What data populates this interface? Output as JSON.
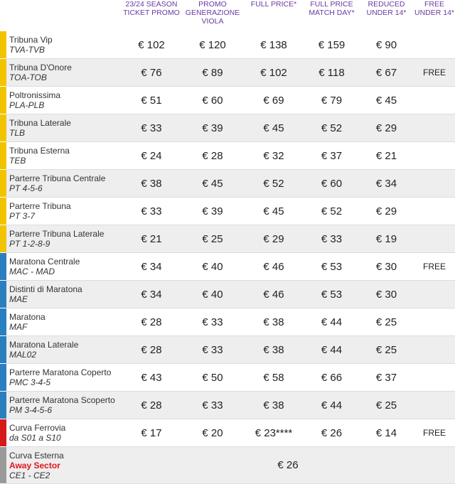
{
  "headers": [
    "",
    [
      "23/24 SEASON",
      "TICKET PROMO"
    ],
    [
      "PROMO",
      "GENERAZIONE",
      "VIOLA"
    ],
    [
      "FULL PRICE*"
    ],
    [
      "FULL PRICE",
      "MATCH DAY*"
    ],
    [
      "REDUCED",
      "UNDER 14*"
    ],
    [
      "FREE",
      "UNDER 14*"
    ]
  ],
  "colors": {
    "yellow": "#f2c400",
    "blue": "#2a7fbf",
    "red": "#d61a1a",
    "gray": "#9a9a9a",
    "header": "#6b3aa0",
    "away": "#e1141c"
  },
  "rows": [
    {
      "bar": "yellow",
      "name": "Tribuna Vip",
      "code": "TVA-TVB",
      "p": [
        "€ 102",
        "€ 120",
        "€ 138",
        "€ 159",
        "€ 90",
        ""
      ]
    },
    {
      "bar": "yellow",
      "name": "Tribuna D'Onore",
      "code": "TOA-TOB",
      "p": [
        "€ 76",
        "€ 89",
        "€ 102",
        "€ 118",
        "€ 67",
        "FREE"
      ]
    },
    {
      "bar": "yellow",
      "name": "Poltronissima",
      "code": "PLA-PLB",
      "p": [
        "€ 51",
        "€ 60",
        "€ 69",
        "€ 79",
        "€ 45",
        ""
      ]
    },
    {
      "bar": "yellow",
      "name": "Tribuna Laterale",
      "code": "TLB",
      "p": [
        "€ 33",
        "€ 39",
        "€ 45",
        "€ 52",
        "€ 29",
        ""
      ]
    },
    {
      "bar": "yellow",
      "name": "Tribuna Esterna",
      "code": "TEB",
      "p": [
        "€ 24",
        "€ 28",
        "€ 32",
        "€ 37",
        "€ 21",
        ""
      ]
    },
    {
      "bar": "yellow",
      "name": "Parterre Tribuna Centrale",
      "code": "PT 4-5-6",
      "p": [
        "€ 38",
        "€ 45",
        "€ 52",
        "€ 60",
        "€ 34",
        ""
      ]
    },
    {
      "bar": "yellow",
      "name": "Parterre Tribuna",
      "code": "PT 3-7",
      "p": [
        "€ 33",
        "€ 39",
        "€ 45",
        "€ 52",
        "€ 29",
        ""
      ]
    },
    {
      "bar": "yellow",
      "name": "Parterre Tribuna Laterale",
      "code": "PT 1-2-8-9",
      "p": [
        "€ 21",
        "€ 25",
        "€ 29",
        "€ 33",
        "€ 19",
        ""
      ]
    },
    {
      "bar": "blue",
      "name": "Maratona Centrale",
      "code": "MAC - MAD",
      "p": [
        "€ 34",
        "€ 40",
        "€ 46",
        "€ 53",
        "€ 30",
        "FREE"
      ]
    },
    {
      "bar": "blue",
      "name": "Distinti di Maratona",
      "code": "MAE",
      "p": [
        "€ 34",
        "€ 40",
        "€ 46",
        "€ 53",
        "€ 30",
        ""
      ]
    },
    {
      "bar": "blue",
      "name": "Maratona",
      "code": "MAF",
      "p": [
        "€ 28",
        "€ 33",
        "€ 38",
        "€ 44",
        "€ 25",
        ""
      ]
    },
    {
      "bar": "blue",
      "name": "Maratona Laterale",
      "code": "MAL02",
      "p": [
        "€ 28",
        "€ 33",
        "€ 38",
        "€ 44",
        "€ 25",
        ""
      ]
    },
    {
      "bar": "blue",
      "name": "Parterre Maratona Coperto",
      "code": "PMC 3-4-5",
      "p": [
        "€ 43",
        "€ 50",
        "€ 58",
        "€ 66",
        "€ 37",
        ""
      ]
    },
    {
      "bar": "blue",
      "name": "Parterre Maratona Scoperto",
      "code": "PM 3-4-5-6",
      "p": [
        "€ 28",
        "€ 33",
        "€ 38",
        "€ 44",
        "€ 25",
        ""
      ]
    },
    {
      "bar": "red",
      "name": "Curva Ferrovia",
      "code": "da S01 a S10",
      "p": [
        "€ 17",
        "€ 20",
        "€ 23****",
        "€ 26",
        "€ 14",
        "FREE"
      ]
    }
  ],
  "away_row": {
    "bar": "gray",
    "name": "Curva Esterna",
    "away_label": "Away Sector",
    "code": "CE1 - CE2",
    "price": "€ 26"
  }
}
